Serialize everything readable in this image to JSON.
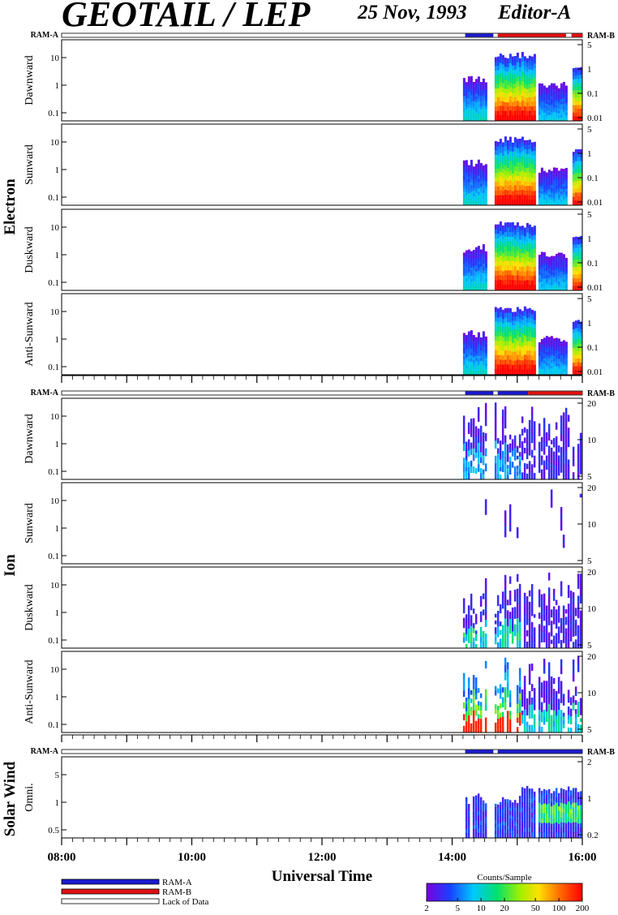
{
  "header": {
    "title": "GEOTAIL / LEP",
    "date": "25 Nov, 1993",
    "editor": "Editor-A"
  },
  "colors": {
    "ram_a": "#1a1ad0",
    "ram_b": "#e01010",
    "lack_of_data": "#ffffff"
  },
  "chart_data": {
    "type": "heatmap",
    "xlabel": "Universal Time",
    "x_ticks": [
      "08:00",
      "10:00",
      "12:00",
      "14:00",
      "16:00"
    ],
    "x_range": [
      "08:00",
      "16:00"
    ],
    "data_start": "14:10",
    "groups": [
      {
        "name": "Electron",
        "mode_left": "RAM-A",
        "mode_right": "RAM-B",
        "mode_segments": [
          {
            "start": "14:12",
            "end": "14:38",
            "mode": "RAM-A"
          },
          {
            "start": "14:38",
            "end": "14:42",
            "mode": "gap"
          },
          {
            "start": "14:42",
            "end": "15:45",
            "mode": "RAM-B"
          },
          {
            "start": "15:45",
            "end": "15:50",
            "mode": "gap"
          },
          {
            "start": "15:50",
            "end": "16:00",
            "mode": "RAM-B"
          }
        ],
        "panels": [
          {
            "label": "Dawnward",
            "y_ticks_left": [
              "10",
              "1",
              "0.1"
            ],
            "y_ticks_right": [
              "5",
              "1",
              "0.1",
              "0.01"
            ]
          },
          {
            "label": "Sunward",
            "y_ticks_left": [
              "10",
              "1",
              "0.1"
            ],
            "y_ticks_right": [
              "5",
              "1",
              "0.1",
              "0.01"
            ]
          },
          {
            "label": "Duskward",
            "y_ticks_left": [
              "10",
              "1",
              "0.1"
            ],
            "y_ticks_right": [
              "5",
              "1",
              "0.1",
              "0.01"
            ]
          },
          {
            "label": "Anti-Sunward",
            "y_ticks_left": [
              "10",
              "1",
              "0.1"
            ],
            "y_ticks_right": [
              "5",
              "1",
              "0.1",
              "0.01"
            ]
          }
        ]
      },
      {
        "name": "Ion",
        "mode_left": "RAM-A",
        "mode_right": "RAM-B",
        "mode_segments": [
          {
            "start": "14:12",
            "end": "14:38",
            "mode": "RAM-A"
          },
          {
            "start": "14:38",
            "end": "14:42",
            "mode": "gap"
          },
          {
            "start": "14:42",
            "end": "15:10",
            "mode": "RAM-A"
          },
          {
            "start": "15:10",
            "end": "16:00",
            "mode": "RAM-B"
          }
        ],
        "panels": [
          {
            "label": "Dawnward",
            "y_ticks_left": [
              "10",
              "1",
              "0.1"
            ],
            "y_ticks_right": [
              "20",
              "10",
              "5"
            ]
          },
          {
            "label": "Sunward",
            "y_ticks_left": [
              "10",
              "1",
              "0.1"
            ],
            "y_ticks_right": [
              "20",
              "10",
              "5"
            ]
          },
          {
            "label": "Duskward",
            "y_ticks_left": [
              "10",
              "1",
              "0.1"
            ],
            "y_ticks_right": [
              "20",
              "10",
              "5"
            ]
          },
          {
            "label": "Anti-Sunward",
            "y_ticks_left": [
              "10",
              "1",
              "0.1"
            ],
            "y_ticks_right": [
              "20",
              "10",
              "5"
            ]
          }
        ]
      },
      {
        "name": "Solar Wind",
        "mode_left": "RAM-A",
        "mode_right": "RAM-B",
        "mode_segments": [
          {
            "start": "14:12",
            "end": "14:38",
            "mode": "RAM-A"
          },
          {
            "start": "14:38",
            "end": "14:42",
            "mode": "gap"
          },
          {
            "start": "14:42",
            "end": "16:00",
            "mode": "RAM-A"
          }
        ],
        "panels": [
          {
            "label": "Omni.",
            "y_ticks_left": [
              "5",
              "1",
              "0.5"
            ],
            "y_ticks_right": [
              "2",
              "1",
              "0.2"
            ]
          }
        ]
      }
    ],
    "legend": {
      "entries": [
        "RAM-A",
        "RAM-B",
        "Lack of Data"
      ]
    },
    "colorbar": {
      "label": "Counts/Sample",
      "ticks": [
        "2",
        "5",
        "10",
        "20",
        "50",
        "100",
        "200"
      ],
      "scale": "log",
      "range": [
        2,
        200
      ]
    }
  }
}
